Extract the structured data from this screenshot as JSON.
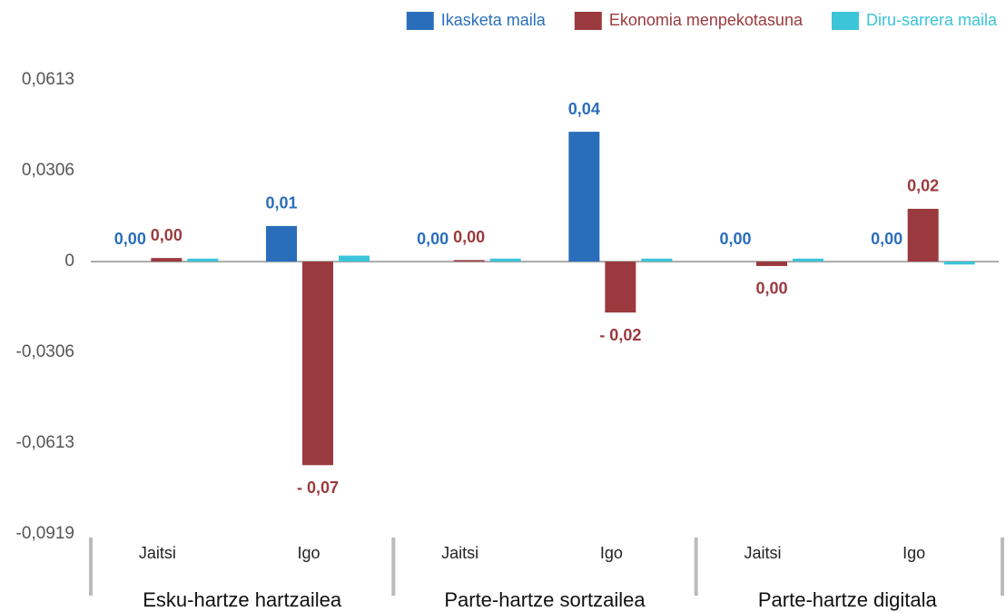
{
  "chart_data": {
    "type": "bar",
    "categories": [
      "Jaitsi",
      "Igo",
      "Jaitsi",
      "Igo",
      "Jaitsi",
      "Igo"
    ],
    "groups": [
      "Esku-hartze hartzailea",
      "Parte-hartze sortzailea",
      "Parte-hartze digitala"
    ],
    "series": [
      {
        "name": "Ikasketa maila",
        "color": "#2a6ebb",
        "values": [
          0,
          0.012,
          0,
          0.0438,
          0,
          0
        ],
        "value_labels": [
          "0,00",
          "0,01",
          "0,00",
          "0,04",
          "0,00",
          "0,00"
        ]
      },
      {
        "name": "Ekonomia menpekotasuna",
        "color": "#9b3a3e",
        "values": [
          0.0012,
          -0.0687,
          0.0005,
          -0.0172,
          -0.0015,
          0.0178
        ],
        "value_labels": [
          "0,00",
          "- 0,07",
          "0,00",
          "- 0,02",
          "0,00",
          "0,02"
        ]
      },
      {
        "name": "Diru-sarrera maila",
        "color": "#3cc4d9",
        "values": [
          0.001,
          0.002,
          0.001,
          0.001,
          0.001,
          -0.001
        ]
      }
    ],
    "ylim": [
      -0.0919,
      0.0613
    ],
    "yticks": [
      {
        "value": 0.0613,
        "label": "0,0613"
      },
      {
        "value": 0.0306,
        "label": "0,0306"
      },
      0,
      {
        "value": -0.0306,
        "label": "-0,0306"
      },
      {
        "value": -0.0613,
        "label": "-0,0613"
      },
      {
        "value": -0.0919,
        "label": "-0,0919"
      }
    ],
    "legend": "top-right"
  }
}
